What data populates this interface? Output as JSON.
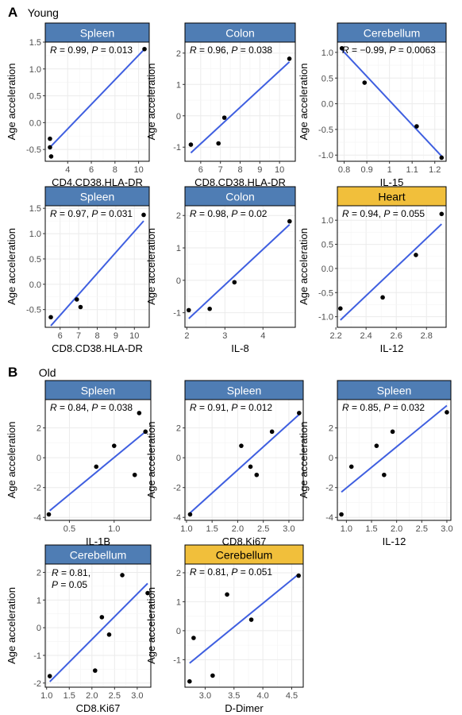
{
  "sections": [
    {
      "letter": "A",
      "label": "Young"
    },
    {
      "letter": "B",
      "label": "Old"
    }
  ],
  "theme": {
    "header_blue": "#4f7db4",
    "header_gold": "#f1bf3b",
    "line_color": "#3f5fe0",
    "point_color": "#000000",
    "grid_color": "#ebebeb"
  },
  "chart_data": [
    {
      "type": "scatter",
      "section": "A",
      "title": "Spleen",
      "header": "blue",
      "xlabel": "CD4.CD38.HLA-DR",
      "ylabel": "Age acceleration",
      "annotation": [
        {
          "t": "R",
          "i": true
        },
        {
          "t": " = 0.99, "
        },
        {
          "t": "P",
          "i": true
        },
        {
          "t": " = 0.013"
        }
      ],
      "xlim": [
        2.1,
        10.9
      ],
      "ylim": [
        -0.72,
        1.5
      ],
      "xticks": [
        4,
        6,
        8,
        10
      ],
      "xtick_labels": [
        "4",
        "6",
        "8",
        "10"
      ],
      "yticks": [
        -0.5,
        0,
        0.5,
        1,
        1.5
      ],
      "ytick_labels": [
        "-0.5",
        "0.0",
        "0.5",
        "1.0",
        "1.5"
      ],
      "x": [
        2.5,
        2.5,
        2.6,
        10.5
      ],
      "y": [
        -0.3,
        -0.46,
        -0.63,
        1.37
      ],
      "fit": [
        [
          2.5,
          -0.46
        ],
        [
          10.5,
          1.37
        ]
      ]
    },
    {
      "type": "scatter",
      "section": "A",
      "title": "Colon",
      "header": "blue",
      "xlabel": "CD8.CD38.HLA-DR",
      "ylabel": "Age acceleration",
      "annotation": [
        {
          "t": "R",
          "i": true
        },
        {
          "t": " = 0.96, "
        },
        {
          "t": "P",
          "i": true
        },
        {
          "t": " = 0.038"
        }
      ],
      "xlim": [
        5.2,
        10.8
      ],
      "ylim": [
        -1.45,
        2.35
      ],
      "xticks": [
        6,
        7,
        8,
        9,
        10
      ],
      "xtick_labels": [
        "6",
        "7",
        "8",
        "9",
        "10"
      ],
      "yticks": [
        -1,
        0,
        1,
        2
      ],
      "ytick_labels": [
        "-1",
        "0",
        "1",
        "2"
      ],
      "x": [
        5.5,
        6.9,
        7.2,
        10.5
      ],
      "y": [
        -0.92,
        -0.88,
        -0.06,
        1.82
      ],
      "fit": [
        [
          5.5,
          -1.18
        ],
        [
          10.5,
          1.72
        ]
      ]
    },
    {
      "type": "scatter",
      "section": "A",
      "title": "Cerebellum",
      "header": "blue",
      "xlabel": "IL-15",
      "ylabel": "Age acceleration",
      "annotation": [
        {
          "t": "R",
          "i": true
        },
        {
          "t": " = −0.99, "
        },
        {
          "t": "P",
          "i": true
        },
        {
          "t": " = 0.0063"
        }
      ],
      "xlim": [
        0.77,
        1.25
      ],
      "ylim": [
        -1.12,
        1.2
      ],
      "xticks": [
        0.8,
        0.9,
        1.0,
        1.1,
        1.2
      ],
      "xtick_labels": [
        "0.8",
        "0.9",
        "1",
        "1.1",
        "1.2"
      ],
      "yticks": [
        -1,
        -0.5,
        0,
        0.5,
        1
      ],
      "ytick_labels": [
        "-1.0",
        "-0.5",
        "0.0",
        "0.5",
        "1.0"
      ],
      "x": [
        0.79,
        0.89,
        1.12,
        1.23
      ],
      "y": [
        1.08,
        0.41,
        -0.44,
        -1.05
      ],
      "fit": [
        [
          0.79,
          1.05
        ],
        [
          1.23,
          -1.02
        ]
      ]
    },
    {
      "type": "scatter",
      "section": "A",
      "title": "Spleen",
      "header": "blue",
      "xlabel": "CD8.CD38.HLA-DR",
      "ylabel": "Age acceleration",
      "annotation": [
        {
          "t": "R",
          "i": true
        },
        {
          "t": " = 0.97, "
        },
        {
          "t": "P",
          "i": true
        },
        {
          "t": " = 0.031"
        }
      ],
      "xlim": [
        5.2,
        10.8
      ],
      "ylim": [
        -0.85,
        1.55
      ],
      "xticks": [
        6,
        7,
        8,
        9,
        10
      ],
      "xtick_labels": [
        "6",
        "7",
        "8",
        "9",
        "10"
      ],
      "yticks": [
        -0.5,
        0,
        0.5,
        1,
        1.5
      ],
      "ytick_labels": [
        "-0.5",
        "0.0",
        "0.5",
        "1.0",
        "1.5"
      ],
      "x": [
        5.5,
        6.9,
        7.1,
        10.5
      ],
      "y": [
        -0.65,
        -0.3,
        -0.45,
        1.37
      ],
      "fit": [
        [
          5.5,
          -0.82
        ],
        [
          10.5,
          1.25
        ]
      ]
    },
    {
      "type": "scatter",
      "section": "A",
      "title": "Colon",
      "header": "blue",
      "xlabel": "IL-8",
      "ylabel": "Age acceleration",
      "annotation": [
        {
          "t": "R",
          "i": true
        },
        {
          "t": " = 0.98, "
        },
        {
          "t": "P",
          "i": true
        },
        {
          "t": " = 0.02"
        }
      ],
      "xlim": [
        1.95,
        4.85
      ],
      "ylim": [
        -1.45,
        2.3
      ],
      "xticks": [
        2,
        3,
        4
      ],
      "xtick_labels": [
        "2",
        "3",
        "4"
      ],
      "yticks": [
        -1,
        0,
        1,
        2
      ],
      "ytick_labels": [
        "-1",
        "0",
        "1",
        "2"
      ],
      "x": [
        2.05,
        2.6,
        3.25,
        4.7
      ],
      "y": [
        -0.92,
        -0.88,
        -0.06,
        1.82
      ],
      "fit": [
        [
          2.05,
          -1.18
        ],
        [
          4.7,
          1.72
        ]
      ]
    },
    {
      "type": "scatter",
      "section": "A",
      "title": "Heart",
      "header": "gold",
      "xlabel": "IL-12",
      "ylabel": "Age acceleration",
      "annotation": [
        {
          "t": "R",
          "i": true
        },
        {
          "t": " = 0.94, "
        },
        {
          "t": "P",
          "i": true
        },
        {
          "t": " = 0.055"
        }
      ],
      "xlim": [
        2.21,
        2.93
      ],
      "ylim": [
        -1.22,
        1.3
      ],
      "xticks": [
        2.2,
        2.4,
        2.6,
        2.8
      ],
      "xtick_labels": [
        "2.2",
        "2.4",
        "2.6",
        "2.8"
      ],
      "yticks": [
        -1,
        -0.5,
        0,
        0.5,
        1
      ],
      "ytick_labels": [
        "-1.0",
        "-0.5",
        "0.0",
        "0.5",
        "1.0"
      ],
      "x": [
        2.23,
        2.51,
        2.73,
        2.9
      ],
      "y": [
        -0.83,
        -0.6,
        0.28,
        1.13
      ],
      "fit": [
        [
          2.23,
          -1.07
        ],
        [
          2.9,
          0.92
        ]
      ]
    },
    {
      "type": "scatter",
      "section": "B",
      "title": "Spleen",
      "header": "blue",
      "xlabel": "IL-1B",
      "ylabel": "Age acceleration",
      "annotation": [
        {
          "t": "R",
          "i": true
        },
        {
          "t": " = 0.84, "
        },
        {
          "t": "P",
          "i": true
        },
        {
          "t": " = 0.038"
        }
      ],
      "xlim": [
        0.23,
        1.41
      ],
      "ylim": [
        -4.2,
        3.9
      ],
      "xticks": [
        0.5,
        1.0
      ],
      "xtick_labels": [
        "0.5",
        "1.0"
      ],
      "yticks": [
        -4,
        -2,
        0,
        2
      ],
      "ytick_labels": [
        "-4",
        "-2",
        "0",
        "2"
      ],
      "x": [
        0.27,
        0.8,
        1.0,
        1.23,
        1.28,
        1.35
      ],
      "y": [
        -3.8,
        -0.6,
        0.8,
        -1.15,
        3.0,
        1.75
      ],
      "fit": [
        [
          0.28,
          -3.55
        ],
        [
          1.35,
          1.75
        ]
      ]
    },
    {
      "type": "scatter",
      "section": "B",
      "title": "Spleen",
      "header": "blue",
      "xlabel": "CD8.Ki67",
      "ylabel": "Age acceleration",
      "annotation": [
        {
          "t": "R",
          "i": true
        },
        {
          "t": " = 0.91, "
        },
        {
          "t": "P",
          "i": true
        },
        {
          "t": " = 0.012"
        }
      ],
      "xlim": [
        0.97,
        3.28
      ],
      "ylim": [
        -4.2,
        3.9
      ],
      "xticks": [
        1.0,
        1.5,
        2.0,
        2.5,
        3.0
      ],
      "xtick_labels": [
        "1.0",
        "1.5",
        "2.0",
        "2.5",
        "3.0"
      ],
      "yticks": [
        -4,
        -2,
        0,
        2
      ],
      "ytick_labels": [
        "-4",
        "-2",
        "0",
        "2"
      ],
      "x": [
        1.07,
        2.07,
        2.25,
        2.37,
        2.67,
        3.2
      ],
      "y": [
        -3.8,
        0.8,
        -0.6,
        -1.15,
        1.75,
        3.0
      ],
      "fit": [
        [
          1.07,
          -3.7
        ],
        [
          3.2,
          2.9
        ]
      ]
    },
    {
      "type": "scatter",
      "section": "B",
      "title": "Spleen",
      "header": "blue",
      "xlabel": "IL-12",
      "ylabel": "Age acceleration",
      "annotation": [
        {
          "t": "R",
          "i": true
        },
        {
          "t": " = 0.85, "
        },
        {
          "t": "P",
          "i": true
        },
        {
          "t": " = 0.032"
        }
      ],
      "xlim": [
        0.82,
        3.08
      ],
      "ylim": [
        -4.2,
        3.9
      ],
      "xticks": [
        1.0,
        1.5,
        2.0,
        2.5,
        3.0
      ],
      "xtick_labels": [
        "1.0",
        "1.5",
        "2.0",
        "2.5",
        "3.0"
      ],
      "yticks": [
        -4,
        -2,
        0,
        2
      ],
      "ytick_labels": [
        "-4",
        "-2",
        "0",
        "2"
      ],
      "x": [
        0.9,
        1.1,
        1.6,
        1.75,
        1.92,
        3.0
      ],
      "y": [
        -3.8,
        -0.6,
        0.8,
        -1.15,
        1.75,
        3.05
      ],
      "fit": [
        [
          0.9,
          -2.3
        ],
        [
          3.0,
          3.5
        ]
      ]
    },
    {
      "type": "scatter",
      "section": "B",
      "title": "Cerebellum",
      "header": "blue",
      "xlabel": "CD8.Ki67",
      "ylabel": "Age acceleration",
      "annotation_lines": [
        [
          {
            "t": "R",
            "i": true
          },
          {
            "t": " = 0.81,"
          }
        ],
        [
          {
            "t": "P",
            "i": true
          },
          {
            "t": " = 0.05"
          }
        ]
      ],
      "xlim": [
        0.97,
        3.3
      ],
      "ylim": [
        -2.15,
        2.3
      ],
      "xticks": [
        1.0,
        1.5,
        2.0,
        2.5,
        3.0
      ],
      "xtick_labels": [
        "1.0",
        "1.5",
        "2.0",
        "2.5",
        "3.0"
      ],
      "yticks": [
        -2,
        -1,
        0,
        1,
        2
      ],
      "ytick_labels": [
        "-2",
        "-1",
        "0",
        "1",
        "2"
      ],
      "x": [
        1.07,
        2.07,
        2.22,
        2.38,
        2.67,
        3.23
      ],
      "y": [
        -1.75,
        -1.55,
        0.38,
        -0.25,
        1.9,
        1.25
      ],
      "fit": [
        [
          1.07,
          -1.95
        ],
        [
          3.23,
          1.6
        ]
      ]
    },
    {
      "type": "scatter",
      "section": "B",
      "title": "Cerebellum",
      "header": "gold",
      "xlabel": "D-Dimer",
      "ylabel": "Age acceleration",
      "annotation": [
        {
          "t": "R",
          "i": true
        },
        {
          "t": " = 0.81, "
        },
        {
          "t": "P",
          "i": true
        },
        {
          "t": " = 0.051"
        }
      ],
      "xlim": [
        2.65,
        4.7
      ],
      "ylim": [
        -1.95,
        2.3
      ],
      "xticks": [
        3.0,
        3.5,
        4.0,
        4.5
      ],
      "xtick_labels": [
        "3.0",
        "3.5",
        "4.0",
        "4.5"
      ],
      "yticks": [
        -1,
        0,
        1,
        2
      ],
      "ytick_labels": [
        "-1",
        "0",
        "1",
        "2"
      ],
      "x": [
        2.73,
        2.8,
        3.13,
        3.38,
        3.8,
        4.62
      ],
      "y": [
        -1.75,
        -0.25,
        -1.55,
        1.25,
        0.38,
        1.9
      ],
      "fit": [
        [
          2.73,
          -1.12
        ],
        [
          4.62,
          1.95
        ]
      ]
    }
  ]
}
